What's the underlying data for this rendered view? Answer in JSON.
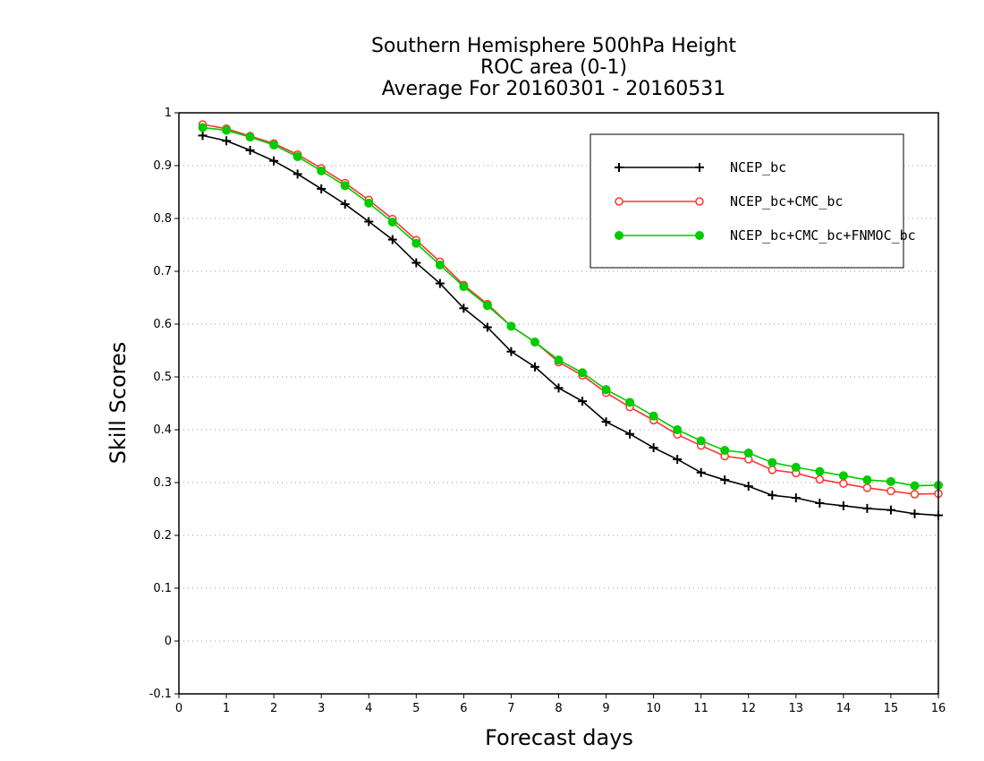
{
  "chart_data": {
    "type": "line",
    "title_lines": [
      "Southern Hemisphere 500hPa Height",
      "ROC area (0-1)",
      "Average For 20160301 - 20160531"
    ],
    "xlabel": "Forecast days",
    "ylabel": "Skill Scores",
    "xlim": [
      0,
      16
    ],
    "ylim": [
      -0.1,
      1
    ],
    "x_ticks": [
      "0",
      "1",
      "2",
      "3",
      "4",
      "5",
      "6",
      "7",
      "8",
      "9",
      "10",
      "11",
      "12",
      "13",
      "14",
      "15",
      "16"
    ],
    "y_ticks": [
      "-0.1",
      "0",
      "0.1",
      "0.2",
      "0.3",
      "0.4",
      "0.5",
      "0.6",
      "0.7",
      "0.8",
      "0.9",
      "1"
    ],
    "grid": "horizontal dotted",
    "legend_placement": "top-right",
    "x": [
      0.5,
      1,
      1.5,
      2,
      2.5,
      3,
      3.5,
      4,
      4.5,
      5,
      5.5,
      6,
      6.5,
      7,
      7.5,
      8,
      8.5,
      9,
      9.5,
      10,
      10.5,
      11,
      11.5,
      12,
      12.5,
      13,
      13.5,
      14,
      14.5,
      15,
      15.5,
      16
    ],
    "series": [
      {
        "name": "NCEP_bc",
        "color": "#000000",
        "marker": "plus",
        "values": [
          0.957,
          0.947,
          0.929,
          0.909,
          0.884,
          0.856,
          0.827,
          0.794,
          0.76,
          0.716,
          0.677,
          0.63,
          0.594,
          0.548,
          0.519,
          0.479,
          0.454,
          0.415,
          0.392,
          0.366,
          0.344,
          0.319,
          0.305,
          0.293,
          0.276,
          0.271,
          0.261,
          0.256,
          0.251,
          0.248,
          0.241,
          0.238
        ]
      },
      {
        "name": "NCEP_bc+CMC_bc",
        "color": "#ff3333",
        "marker": "open-circle",
        "values": [
          0.978,
          0.97,
          0.956,
          0.942,
          0.921,
          0.895,
          0.867,
          0.835,
          0.799,
          0.759,
          0.718,
          0.674,
          0.638,
          0.596,
          0.566,
          0.528,
          0.503,
          0.47,
          0.443,
          0.418,
          0.391,
          0.37,
          0.35,
          0.344,
          0.324,
          0.318,
          0.306,
          0.298,
          0.29,
          0.284,
          0.278,
          0.279
        ]
      },
      {
        "name": "NCEP_bc+CMC_bc+FNMOC_bc",
        "color": "#00cc00",
        "marker": "filled-circle",
        "values": [
          0.972,
          0.967,
          0.954,
          0.939,
          0.917,
          0.89,
          0.862,
          0.829,
          0.793,
          0.753,
          0.712,
          0.671,
          0.635,
          0.596,
          0.566,
          0.532,
          0.508,
          0.476,
          0.452,
          0.426,
          0.4,
          0.379,
          0.361,
          0.356,
          0.338,
          0.329,
          0.321,
          0.313,
          0.305,
          0.302,
          0.294,
          0.295
        ]
      }
    ]
  }
}
